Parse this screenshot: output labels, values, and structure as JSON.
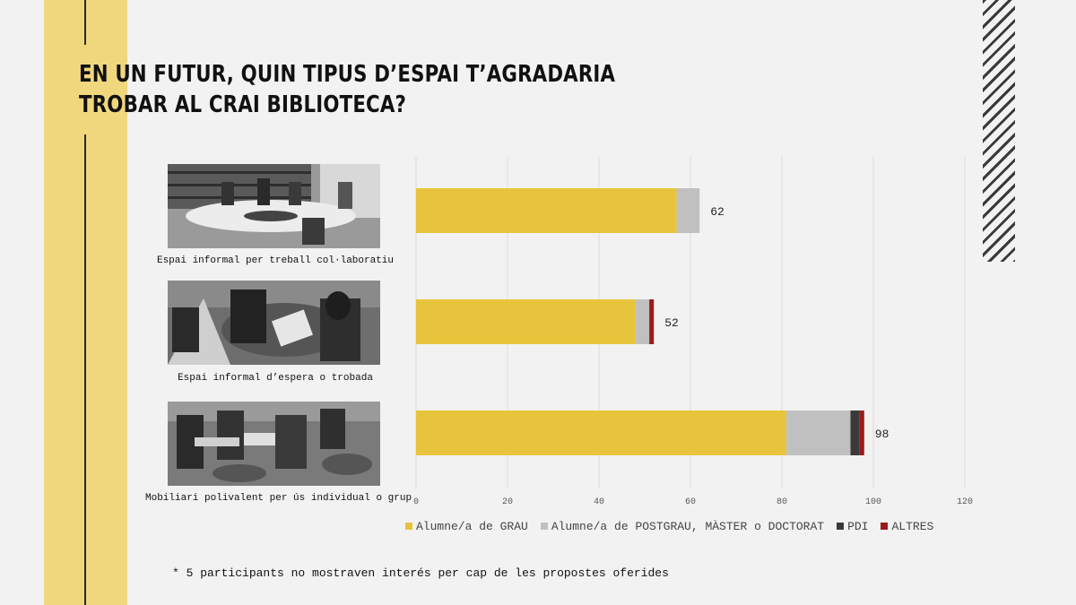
{
  "title": {
    "line1": "EN UN FUTUR, QUIN TIPUS D’ESPAI T’AGRADARIA",
    "line2": "TROBAR AL CRAI BIBLIOTECA?"
  },
  "chart_data": {
    "type": "bar",
    "orientation": "horizontal",
    "stacked": true,
    "categories": [
      "Espai informal per treball col·laboratiu",
      "Espai informal d’espera o trobada",
      "Mobiliari polivalent per ús individual o grup"
    ],
    "series": [
      {
        "name": "Alumne/a de GRAU",
        "color": "#e8c43c",
        "values": [
          57,
          48,
          81
        ]
      },
      {
        "name": "Alumne/a de POSTGRAU, MÀSTER o DOCTORAT",
        "color": "#c0c0c0",
        "values": [
          5,
          3,
          14
        ]
      },
      {
        "name": "PDI",
        "color": "#3a3a3a",
        "values": [
          0,
          0,
          2
        ]
      },
      {
        "name": "ALTRES",
        "color": "#9b1c1c",
        "values": [
          0,
          1,
          1
        ]
      }
    ],
    "totals": [
      "62",
      "52",
      "98"
    ],
    "xlim": [
      0,
      120
    ],
    "xticks": [
      "0",
      "20",
      "40",
      "60",
      "80",
      "100",
      "120"
    ],
    "grid": true,
    "legend_position": "bottom"
  },
  "footnote": "* 5 participants no mostraven interés per cap de les propostes oferides"
}
